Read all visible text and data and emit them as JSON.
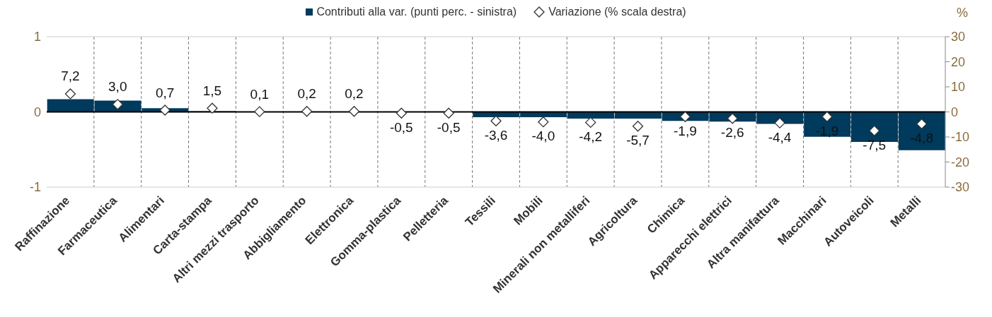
{
  "chart_data": {
    "type": "bar",
    "categories": [
      "Raffinazione",
      "Farmaceutica",
      "Alimentari",
      "Carta-stampa",
      "Altri mezzi trasporto",
      "Abbigliamento",
      "Elettronica",
      "Gomma-plastica",
      "Pelletteria",
      "Tessili",
      "Mobili",
      "Minerali non metalliferi",
      "Agricoltura",
      "Chimica",
      "Apparecchi elettrici",
      "Altra manifattura",
      "Macchinari",
      "Autoveicoli",
      "Metalli"
    ],
    "series": [
      {
        "name": "Contributi alla var. (punti perc. - sinistra)",
        "color": "#003a5c",
        "values": [
          0.17,
          0.15,
          0.05,
          0.01,
          0,
          0,
          0,
          0,
          0,
          -0.07,
          -0.07,
          -0.09,
          -0.09,
          -0.12,
          -0.13,
          -0.16,
          -0.33,
          -0.4,
          -0.51
        ]
      },
      {
        "name": "Variazione (% scala destra)",
        "type": "scatter",
        "axis": "y2",
        "marker": "diamond",
        "color": "#ffffff",
        "values": [
          7.2,
          3.0,
          0.7,
          1.5,
          0.1,
          0.2,
          0.2,
          -0.5,
          -0.5,
          -3.6,
          -4.0,
          -4.2,
          -5.7,
          -1.9,
          -2.6,
          -4.4,
          -1.9,
          -7.5,
          -4.8
        ],
        "value_labels": [
          "7,2",
          "3,0",
          "0,7",
          "1,5",
          "0,1",
          "0,2",
          "0,2",
          "-0,5",
          "-0,5",
          "-3,6",
          "-4,0",
          "-4,2",
          "-5,7",
          "-1,9",
          "-2,6",
          "-4,4",
          "-1,9",
          "-7,5",
          "-4,8"
        ]
      }
    ],
    "ylim": [
      -1,
      1
    ],
    "yticks": [
      -1,
      0,
      1
    ],
    "y2lim": [
      -30,
      30
    ],
    "y2ticks": [
      -30,
      -20,
      -10,
      0,
      10,
      20,
      30
    ],
    "y2label": "%",
    "grid": "x",
    "legend": "top"
  }
}
